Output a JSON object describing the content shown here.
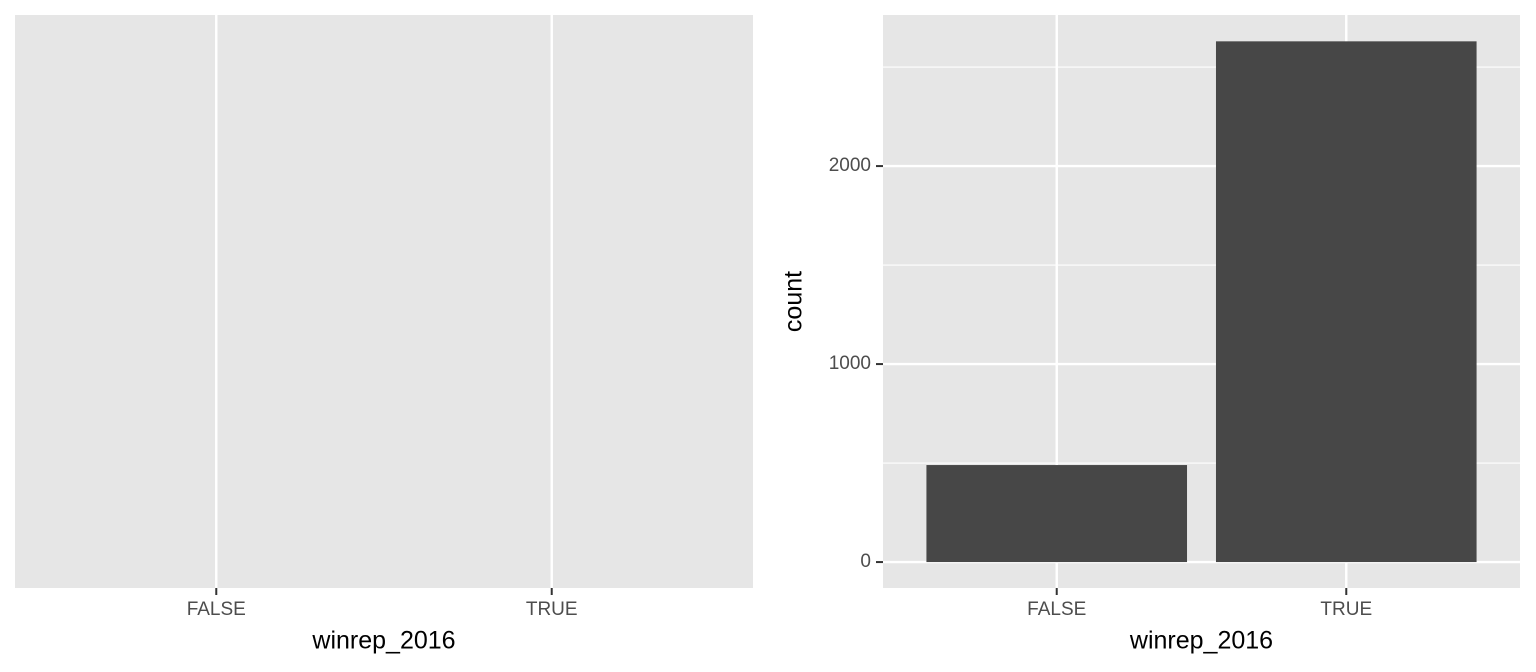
{
  "chart_data": [
    {
      "type": "blank",
      "x_label": "winrep_2016",
      "categories": [
        "FALSE",
        "TRUE"
      ],
      "grid": true
    },
    {
      "type": "bar",
      "x_label": "winrep_2016",
      "y_label": "count",
      "categories": [
        "FALSE",
        "TRUE"
      ],
      "values": [
        490,
        2630
      ],
      "color": "#474747",
      "ylim": [
        -131,
        2763
      ],
      "yticks": [
        0,
        1000,
        2000
      ],
      "yminor": [
        500,
        1500,
        2500
      ],
      "grid": true
    }
  ]
}
